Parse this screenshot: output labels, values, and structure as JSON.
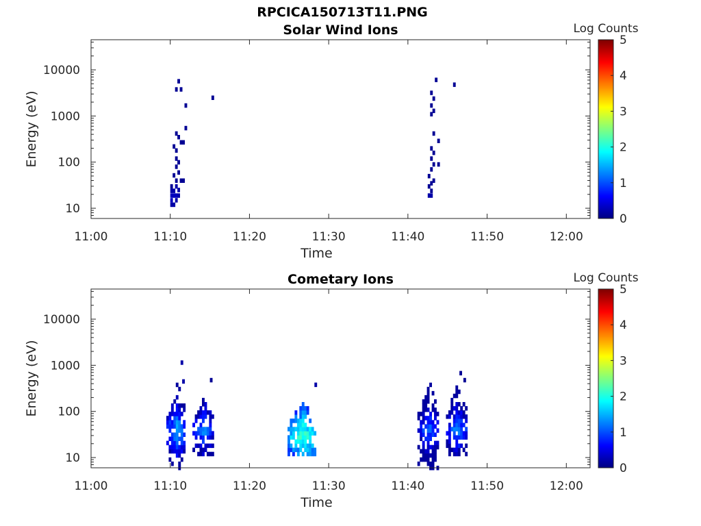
{
  "figure": {
    "title": "RPCICA150713T11.PNG"
  },
  "chart_data": [
    {
      "type": "heatmap",
      "title": "Solar Wind Ions",
      "xlabel": "Time",
      "ylabel": "Energy (eV)",
      "x_scale": "time",
      "y_scale": "log",
      "xlim": [
        "11:00",
        "12:03"
      ],
      "ylim": [
        6,
        45000
      ],
      "x_ticks": [
        "11:00",
        "11:10",
        "11:20",
        "11:30",
        "11:40",
        "11:50",
        "12:00"
      ],
      "y_ticks": [
        "10",
        "100",
        "1000",
        "10000"
      ],
      "colorbar": {
        "label": "Log Counts",
        "range": [
          0,
          5
        ],
        "ticks": [
          "0",
          "1",
          "2",
          "3",
          "4",
          "5"
        ],
        "colormap": "jet"
      },
      "grid": false,
      "cells": [
        {
          "t": "11:10.0",
          "e": 12,
          "c": 0.2
        },
        {
          "t": "11:10.0",
          "e": 15,
          "c": 0.3
        },
        {
          "t": "11:10.0",
          "e": 19,
          "c": 0.3
        },
        {
          "t": "11:10.0",
          "e": 24,
          "c": 0.2
        },
        {
          "t": "11:10.0",
          "e": 30,
          "c": 0.1
        },
        {
          "t": "11:10.3",
          "e": 12,
          "c": 0.2
        },
        {
          "t": "11:10.3",
          "e": 19,
          "c": 0.3
        },
        {
          "t": "11:10.3",
          "e": 24,
          "c": 0.2
        },
        {
          "t": "11:10.3",
          "e": 52,
          "c": 0.1
        },
        {
          "t": "11:10.3",
          "e": 220,
          "c": 0.1
        },
        {
          "t": "11:10.6",
          "e": 15,
          "c": 0.2
        },
        {
          "t": "11:10.6",
          "e": 19,
          "c": 0.3
        },
        {
          "t": "11:10.6",
          "e": 30,
          "c": 0.2
        },
        {
          "t": "11:10.6",
          "e": 40,
          "c": 0.1
        },
        {
          "t": "11:10.6",
          "e": 80,
          "c": 0.1
        },
        {
          "t": "11:10.6",
          "e": 120,
          "c": 0.1
        },
        {
          "t": "11:10.6",
          "e": 180,
          "c": 0.1
        },
        {
          "t": "11:10.6",
          "e": 420,
          "c": 0.1
        },
        {
          "t": "11:10.6",
          "e": 3800,
          "c": 0.1
        },
        {
          "t": "11:10.9",
          "e": 19,
          "c": 0.2
        },
        {
          "t": "11:10.9",
          "e": 25,
          "c": 0.2
        },
        {
          "t": "11:10.9",
          "e": 60,
          "c": 0.1
        },
        {
          "t": "11:10.9",
          "e": 100,
          "c": 0.1
        },
        {
          "t": "11:10.9",
          "e": 350,
          "c": 0.1
        },
        {
          "t": "11:10.9",
          "e": 5700,
          "c": 0.1
        },
        {
          "t": "11:11.2",
          "e": 40,
          "c": 0.1
        },
        {
          "t": "11:11.2",
          "e": 270,
          "c": 0.1
        },
        {
          "t": "11:11.2",
          "e": 3800,
          "c": 0.1
        },
        {
          "t": "11:11.5",
          "e": 40,
          "c": 0.1
        },
        {
          "t": "11:11.5",
          "e": 270,
          "c": 0.1
        },
        {
          "t": "11:11.8",
          "e": 550,
          "c": 0.1
        },
        {
          "t": "11:11.8",
          "e": 1700,
          "c": 0.1
        },
        {
          "t": "11:15.2",
          "e": 2500,
          "c": 0.1
        },
        {
          "t": "11:42.5",
          "e": 19,
          "c": 0.2
        },
        {
          "t": "11:42.5",
          "e": 30,
          "c": 0.1
        },
        {
          "t": "11:42.5",
          "e": 50,
          "c": 0.1
        },
        {
          "t": "11:42.8",
          "e": 19,
          "c": 0.2
        },
        {
          "t": "11:42.8",
          "e": 24,
          "c": 0.1
        },
        {
          "t": "11:42.8",
          "e": 35,
          "c": 0.1
        },
        {
          "t": "11:42.8",
          "e": 70,
          "c": 0.1
        },
        {
          "t": "11:42.8",
          "e": 120,
          "c": 0.1
        },
        {
          "t": "11:42.8",
          "e": 200,
          "c": 0.1
        },
        {
          "t": "11:42.8",
          "e": 1100,
          "c": 0.1
        },
        {
          "t": "11:42.8",
          "e": 1700,
          "c": 0.1
        },
        {
          "t": "11:42.8",
          "e": 3200,
          "c": 0.1
        },
        {
          "t": "11:43.1",
          "e": 40,
          "c": 0.1
        },
        {
          "t": "11:43.1",
          "e": 90,
          "c": 0.1
        },
        {
          "t": "11:43.1",
          "e": 160,
          "c": 0.1
        },
        {
          "t": "11:43.1",
          "e": 420,
          "c": 0.1
        },
        {
          "t": "11:43.1",
          "e": 1300,
          "c": 0.1
        },
        {
          "t": "11:43.1",
          "e": 2400,
          "c": 0.1
        },
        {
          "t": "11:43.4",
          "e": 6100,
          "c": 0.1
        },
        {
          "t": "11:43.7",
          "e": 90,
          "c": 0.1
        },
        {
          "t": "11:43.7",
          "e": 290,
          "c": 0.1
        },
        {
          "t": "11:45.7",
          "e": 4800,
          "c": 0.1
        }
      ]
    },
    {
      "type": "heatmap",
      "title": "Cometary Ions",
      "xlabel": "Time",
      "ylabel": "Energy (eV)",
      "x_scale": "time",
      "y_scale": "log",
      "xlim": [
        "11:00",
        "12:03"
      ],
      "ylim": [
        6,
        45000
      ],
      "x_ticks": [
        "11:00",
        "11:10",
        "11:20",
        "11:30",
        "11:40",
        "11:50",
        "12:00"
      ],
      "y_ticks": [
        "10",
        "100",
        "1000",
        "10000"
      ],
      "colorbar": {
        "label": "Log Counts",
        "range": [
          0,
          5
        ],
        "ticks": [
          "0",
          "1",
          "2",
          "3",
          "4",
          "5"
        ],
        "colormap": "jet"
      },
      "grid": false,
      "clusters": [
        {
          "t0": "11:09.5",
          "t1": "11:11.8",
          "e_lo": 6,
          "e_hi": 450,
          "peak_e": 40,
          "peak_c": 1.5
        },
        {
          "t0": "11:12.8",
          "t1": "11:15.2",
          "e_lo": 12,
          "e_hi": 200,
          "peak_e": 40,
          "peak_c": 1.3
        },
        {
          "t0": "11:24.8",
          "t1": "11:28.2",
          "e_lo": 12,
          "e_hi": 180,
          "peak_e": 30,
          "peak_c": 2.2
        },
        {
          "t0": "11:41.2",
          "t1": "11:43.8",
          "e_lo": 6,
          "e_hi": 420,
          "peak_e": 40,
          "peak_c": 1.2
        },
        {
          "t0": "11:44.8",
          "t1": "11:47.2",
          "e_lo": 12,
          "e_hi": 450,
          "peak_e": 40,
          "peak_c": 1.3
        }
      ],
      "outliers": [
        {
          "t": "11:11.3",
          "e": 1150,
          "c": 0.2
        },
        {
          "t": "11:11.5",
          "e": 450,
          "c": 0.2
        },
        {
          "t": "11:15.0",
          "e": 480,
          "c": 0.1
        },
        {
          "t": "11:28.2",
          "e": 380,
          "c": 0.2
        },
        {
          "t": "11:46.5",
          "e": 680,
          "c": 0.1
        },
        {
          "t": "11:47.0",
          "e": 480,
          "c": 0.1
        }
      ]
    }
  ]
}
